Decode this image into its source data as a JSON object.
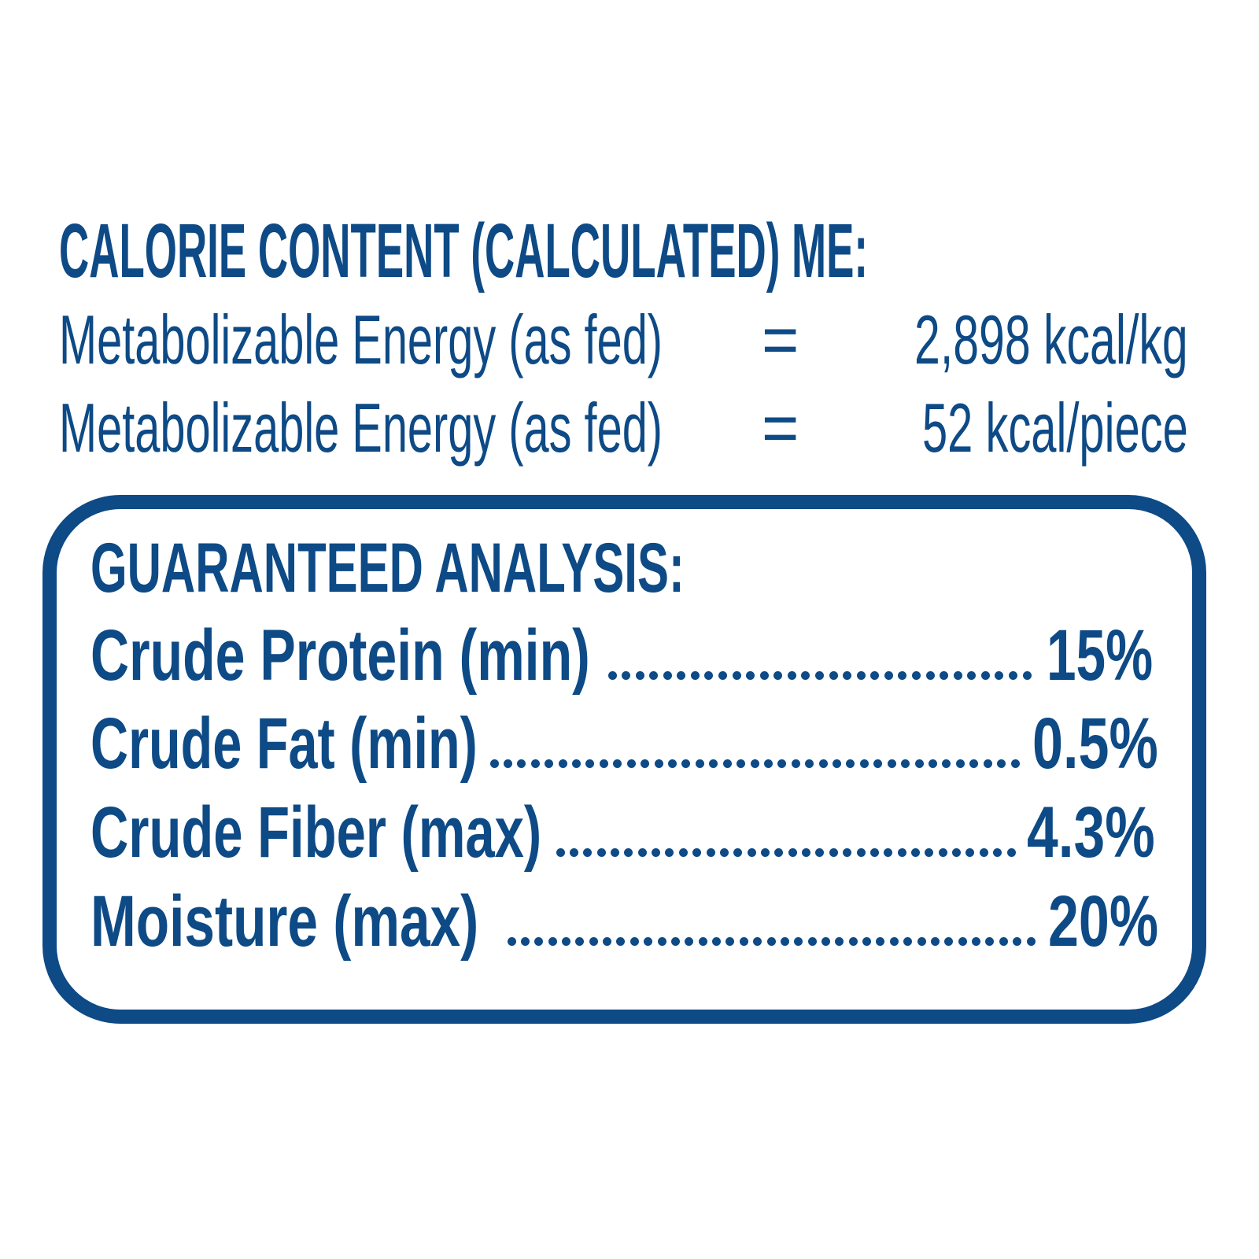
{
  "colors": {
    "brand_blue": "#0d4a86",
    "background": "#ffffff"
  },
  "calorie": {
    "heading": "CALORIE CONTENT (CALCULATED) ME:",
    "rows": [
      {
        "label": "Metabolizable Energy (as fed)",
        "sign": "=",
        "value": "2,898 kcal/kg"
      },
      {
        "label": "Metabolizable Energy (as fed)",
        "sign": "=",
        "value": "52 kcal/piece"
      }
    ]
  },
  "analysis": {
    "heading": "GUARANTEED ANALYSIS:",
    "rows": [
      {
        "label": "Crude Protein (min)",
        "value": "15%"
      },
      {
        "label": "Crude Fat (min)",
        "value": "0.5%"
      },
      {
        "label": "Crude Fiber (max)",
        "value": "4.3%"
      },
      {
        "label": "Moisture (max)",
        "value": "20%"
      }
    ]
  }
}
